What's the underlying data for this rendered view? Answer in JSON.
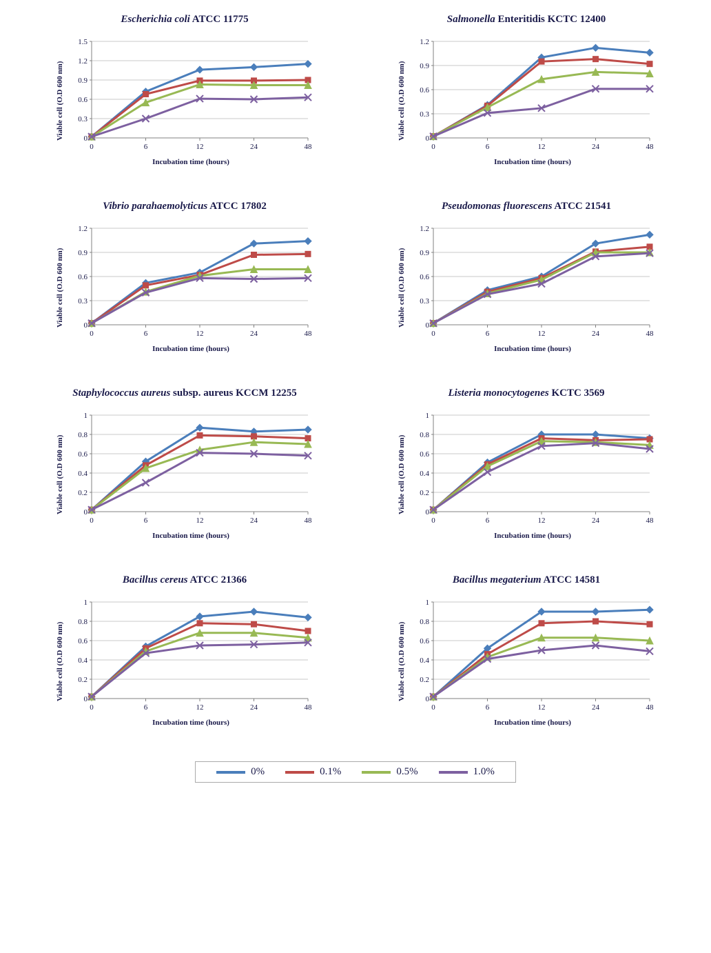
{
  "global": {
    "x_axis_label": "Incubation time (hours)",
    "y_axis_label": "Viable cell (O.D 600 nm)",
    "x_categories": [
      0,
      6,
      12,
      24,
      48
    ],
    "font_family": "Times New Roman",
    "title_fontsize": 15,
    "label_fontsize": 11,
    "background_color": "#ffffff",
    "grid_color": "#c8c8c8",
    "axis_color": "#808080",
    "line_width": 3,
    "marker_size": 5
  },
  "legend": {
    "items": [
      {
        "label": "0%",
        "color": "#4a7ebb",
        "marker": "diamond"
      },
      {
        "label": "0.1%",
        "color": "#be4b48",
        "marker": "square"
      },
      {
        "label": "0.5%",
        "color": "#98b954",
        "marker": "triangle"
      },
      {
        "label": "1.0%",
        "color": "#7d60a0",
        "marker": "x"
      }
    ]
  },
  "charts": [
    {
      "title_italic": "Escherichia coli",
      "title_plain": " ATCC 11775",
      "ylim": [
        0,
        1.5
      ],
      "ytick_step": 0.3,
      "series": [
        {
          "color": "#4a7ebb",
          "marker": "diamond",
          "values": [
            0.02,
            0.72,
            1.06,
            1.1,
            1.15
          ]
        },
        {
          "color": "#be4b48",
          "marker": "square",
          "values": [
            0.02,
            0.68,
            0.89,
            0.89,
            0.9
          ]
        },
        {
          "color": "#98b954",
          "marker": "triangle",
          "values": [
            0.02,
            0.55,
            0.83,
            0.82,
            0.82
          ]
        },
        {
          "color": "#7d60a0",
          "marker": "x",
          "values": [
            0.02,
            0.3,
            0.61,
            0.6,
            0.63
          ]
        }
      ]
    },
    {
      "title_italic": "Salmonella",
      "title_plain": " Enteritidis KCTC 12400",
      "ylim": [
        0,
        1.2
      ],
      "ytick_step": 0.3,
      "series": [
        {
          "color": "#4a7ebb",
          "marker": "diamond",
          "values": [
            0.02,
            0.41,
            1.0,
            1.12,
            1.06
          ]
        },
        {
          "color": "#be4b48",
          "marker": "square",
          "values": [
            0.02,
            0.4,
            0.95,
            0.98,
            0.92
          ]
        },
        {
          "color": "#98b954",
          "marker": "triangle",
          "values": [
            0.02,
            0.38,
            0.73,
            0.82,
            0.8
          ]
        },
        {
          "color": "#7d60a0",
          "marker": "x",
          "values": [
            0.02,
            0.31,
            0.37,
            0.61,
            0.61
          ]
        }
      ]
    },
    {
      "title_italic": "Vibrio parahaemolyticus",
      "title_plain": " ATCC 17802",
      "ylim": [
        0,
        1.2
      ],
      "ytick_step": 0.3,
      "series": [
        {
          "color": "#4a7ebb",
          "marker": "diamond",
          "values": [
            0.02,
            0.52,
            0.65,
            1.01,
            1.04
          ]
        },
        {
          "color": "#be4b48",
          "marker": "square",
          "values": [
            0.02,
            0.49,
            0.62,
            0.87,
            0.88
          ]
        },
        {
          "color": "#98b954",
          "marker": "triangle",
          "values": [
            0.02,
            0.41,
            0.61,
            0.69,
            0.69
          ]
        },
        {
          "color": "#7d60a0",
          "marker": "x",
          "values": [
            0.02,
            0.4,
            0.58,
            0.57,
            0.58
          ]
        }
      ]
    },
    {
      "title_italic": "Pseudomonas fluorescens",
      "title_plain": " ATCC 21541",
      "ylim": [
        0,
        1.2
      ],
      "ytick_step": 0.3,
      "series": [
        {
          "color": "#4a7ebb",
          "marker": "diamond",
          "values": [
            0.02,
            0.43,
            0.6,
            1.01,
            1.12
          ]
        },
        {
          "color": "#be4b48",
          "marker": "square",
          "values": [
            0.02,
            0.41,
            0.58,
            0.91,
            0.97
          ]
        },
        {
          "color": "#98b954",
          "marker": "triangle",
          "values": [
            0.02,
            0.39,
            0.56,
            0.9,
            0.9
          ]
        },
        {
          "color": "#7d60a0",
          "marker": "x",
          "values": [
            0.02,
            0.38,
            0.51,
            0.85,
            0.89
          ]
        }
      ]
    },
    {
      "title_italic": "Staphylococcus aureus",
      "title_plain": " subsp. aureus KCCM 12255",
      "ylim": [
        0,
        1.0
      ],
      "ytick_step": 0.2,
      "series": [
        {
          "color": "#4a7ebb",
          "marker": "diamond",
          "values": [
            0.02,
            0.52,
            0.87,
            0.83,
            0.85
          ]
        },
        {
          "color": "#be4b48",
          "marker": "square",
          "values": [
            0.02,
            0.48,
            0.79,
            0.78,
            0.76
          ]
        },
        {
          "color": "#98b954",
          "marker": "triangle",
          "values": [
            0.02,
            0.45,
            0.64,
            0.72,
            0.7
          ]
        },
        {
          "color": "#7d60a0",
          "marker": "x",
          "values": [
            0.02,
            0.3,
            0.61,
            0.6,
            0.58
          ]
        }
      ]
    },
    {
      "title_italic": "Listeria monocytogenes",
      "title_plain": " KCTC 3569",
      "ylim": [
        0,
        1.0
      ],
      "ytick_step": 0.2,
      "series": [
        {
          "color": "#4a7ebb",
          "marker": "diamond",
          "values": [
            0.02,
            0.51,
            0.8,
            0.8,
            0.76
          ]
        },
        {
          "color": "#be4b48",
          "marker": "square",
          "values": [
            0.02,
            0.49,
            0.76,
            0.74,
            0.75
          ]
        },
        {
          "color": "#98b954",
          "marker": "triangle",
          "values": [
            0.02,
            0.47,
            0.73,
            0.72,
            0.69
          ]
        },
        {
          "color": "#7d60a0",
          "marker": "x",
          "values": [
            0.02,
            0.41,
            0.68,
            0.71,
            0.65
          ]
        }
      ]
    },
    {
      "title_italic": "Bacillus cereus",
      "title_plain": " ATCC 21366",
      "ylim": [
        0,
        1.0
      ],
      "ytick_step": 0.2,
      "series": [
        {
          "color": "#4a7ebb",
          "marker": "diamond",
          "values": [
            0.02,
            0.54,
            0.85,
            0.9,
            0.84
          ]
        },
        {
          "color": "#be4b48",
          "marker": "square",
          "values": [
            0.02,
            0.52,
            0.78,
            0.77,
            0.7
          ]
        },
        {
          "color": "#98b954",
          "marker": "triangle",
          "values": [
            0.02,
            0.49,
            0.68,
            0.68,
            0.63
          ]
        },
        {
          "color": "#7d60a0",
          "marker": "x",
          "values": [
            0.02,
            0.47,
            0.55,
            0.56,
            0.58
          ]
        }
      ]
    },
    {
      "title_italic": "Bacillus megaterium",
      "title_plain": " ATCC 14581",
      "ylim": [
        0,
        1.0
      ],
      "ytick_step": 0.2,
      "series": [
        {
          "color": "#4a7ebb",
          "marker": "diamond",
          "values": [
            0.02,
            0.52,
            0.9,
            0.9,
            0.92
          ]
        },
        {
          "color": "#be4b48",
          "marker": "square",
          "values": [
            0.02,
            0.46,
            0.78,
            0.8,
            0.77
          ]
        },
        {
          "color": "#98b954",
          "marker": "triangle",
          "values": [
            0.02,
            0.43,
            0.63,
            0.63,
            0.6
          ]
        },
        {
          "color": "#7d60a0",
          "marker": "x",
          "values": [
            0.02,
            0.41,
            0.5,
            0.55,
            0.49
          ]
        }
      ]
    }
  ]
}
